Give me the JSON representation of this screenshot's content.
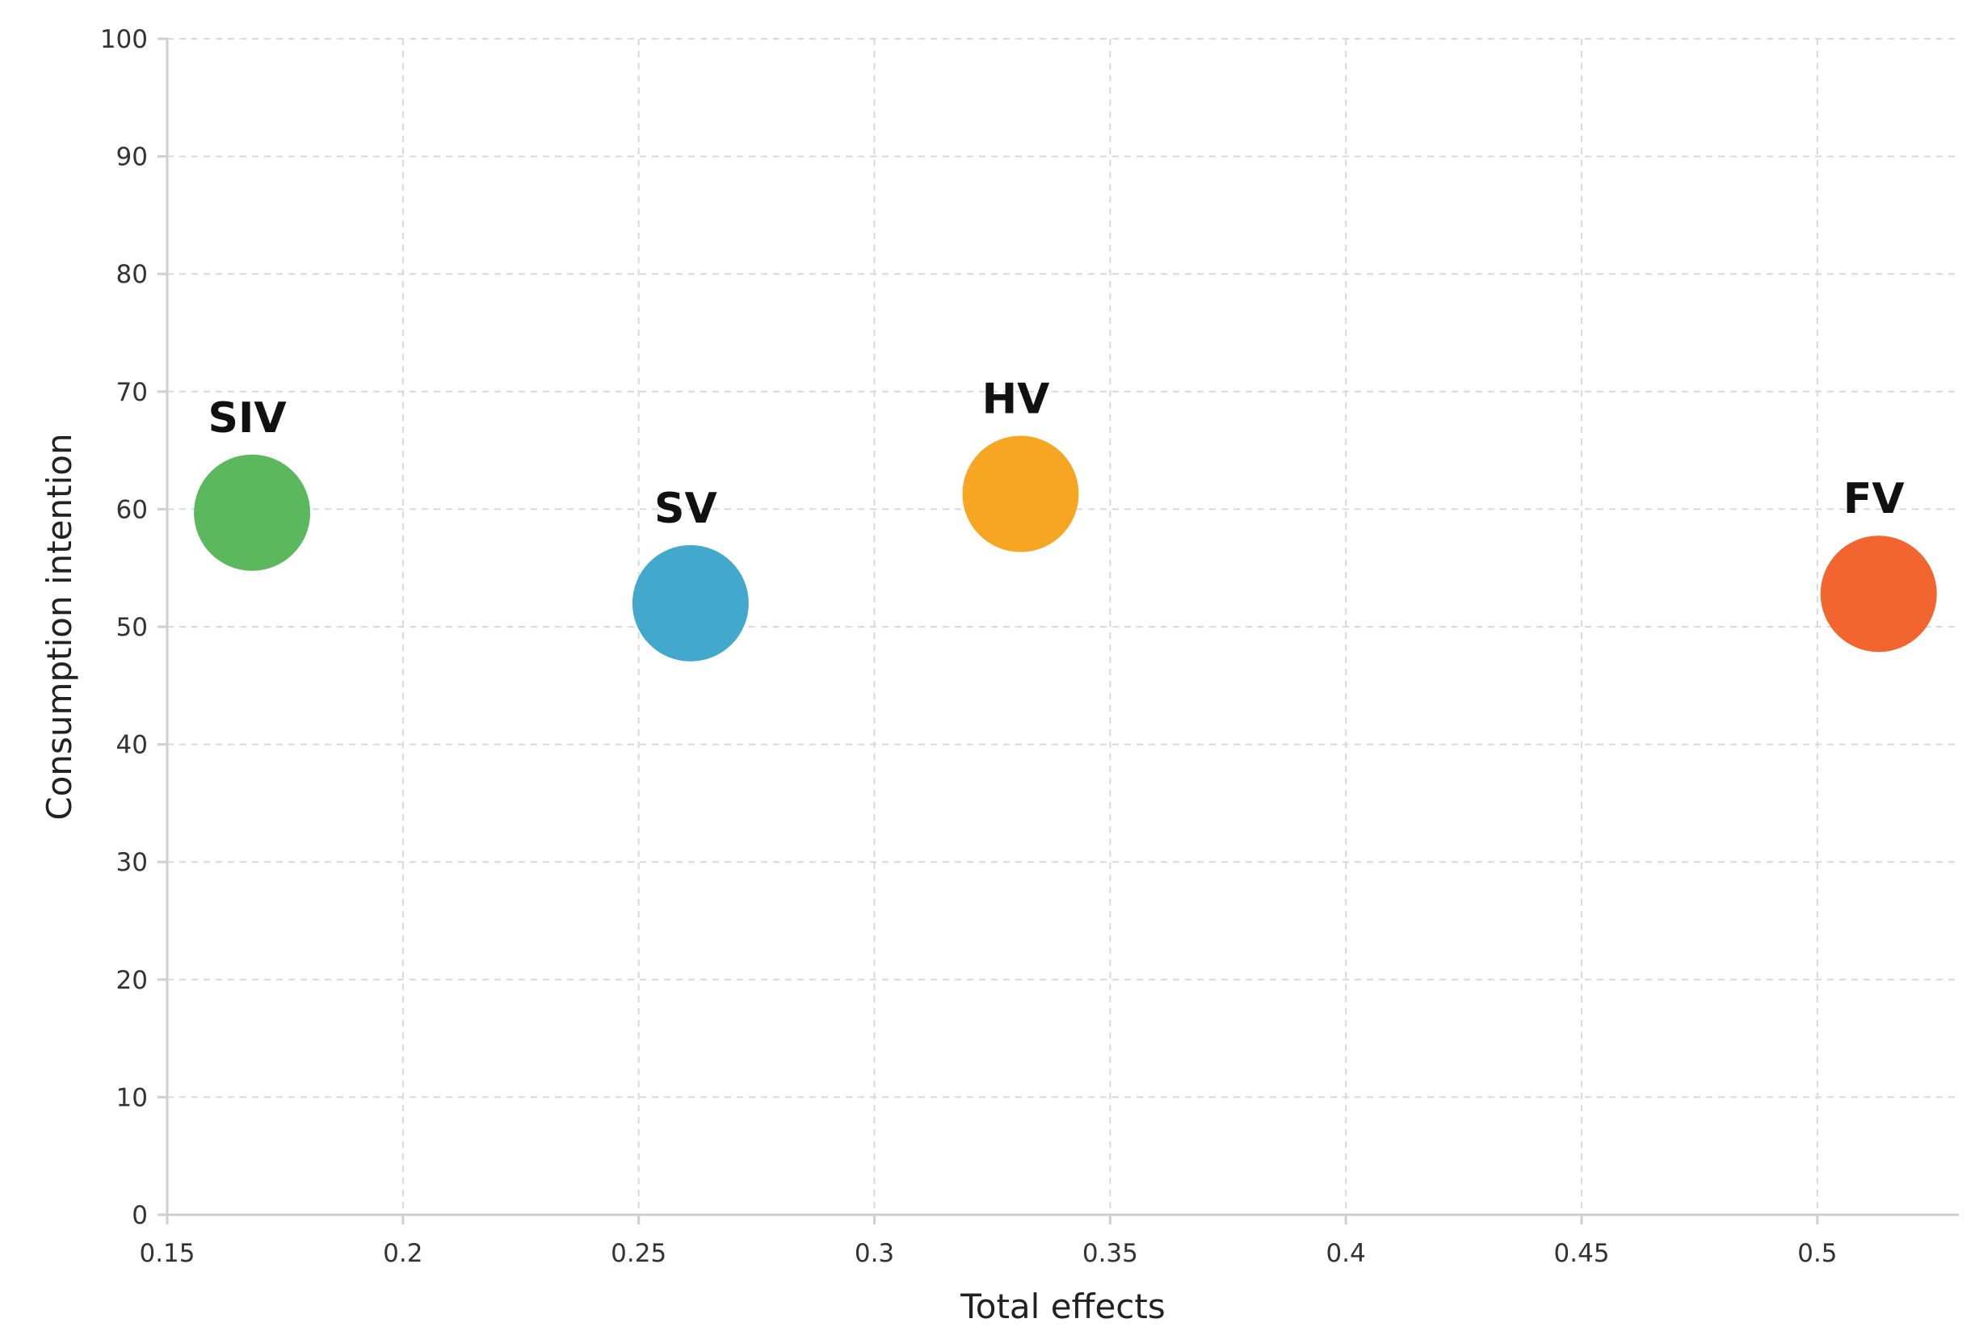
{
  "chart_data": {
    "type": "scatter",
    "title": "",
    "xlabel": "Total effects",
    "ylabel": "Consumption intention",
    "xlim": [
      0.15,
      0.53
    ],
    "ylim": [
      0,
      100
    ],
    "x_ticks": [
      0.15,
      0.2,
      0.25,
      0.3,
      0.35,
      0.4,
      0.45,
      0.5
    ],
    "x_tick_labels": [
      "0.15",
      "0.2",
      "0.25",
      "0.3",
      "0.35",
      "0.4",
      "0.45",
      "0.5"
    ],
    "y_ticks": [
      0,
      10,
      20,
      30,
      40,
      50,
      60,
      70,
      80,
      90,
      100
    ],
    "y_tick_labels": [
      "0",
      "10",
      "20",
      "30",
      "40",
      "50",
      "60",
      "70",
      "80",
      "90",
      "100"
    ],
    "grid": true,
    "points": [
      {
        "label": "SIV",
        "x": 0.168,
        "y": 59.7,
        "color": "#5cb85c"
      },
      {
        "label": "SV",
        "x": 0.261,
        "y": 52.0,
        "color": "#42a8cc"
      },
      {
        "label": "HV",
        "x": 0.331,
        "y": 61.3,
        "color": "#f7a623"
      },
      {
        "label": "FV",
        "x": 0.513,
        "y": 52.8,
        "color": "#f26430"
      }
    ]
  }
}
